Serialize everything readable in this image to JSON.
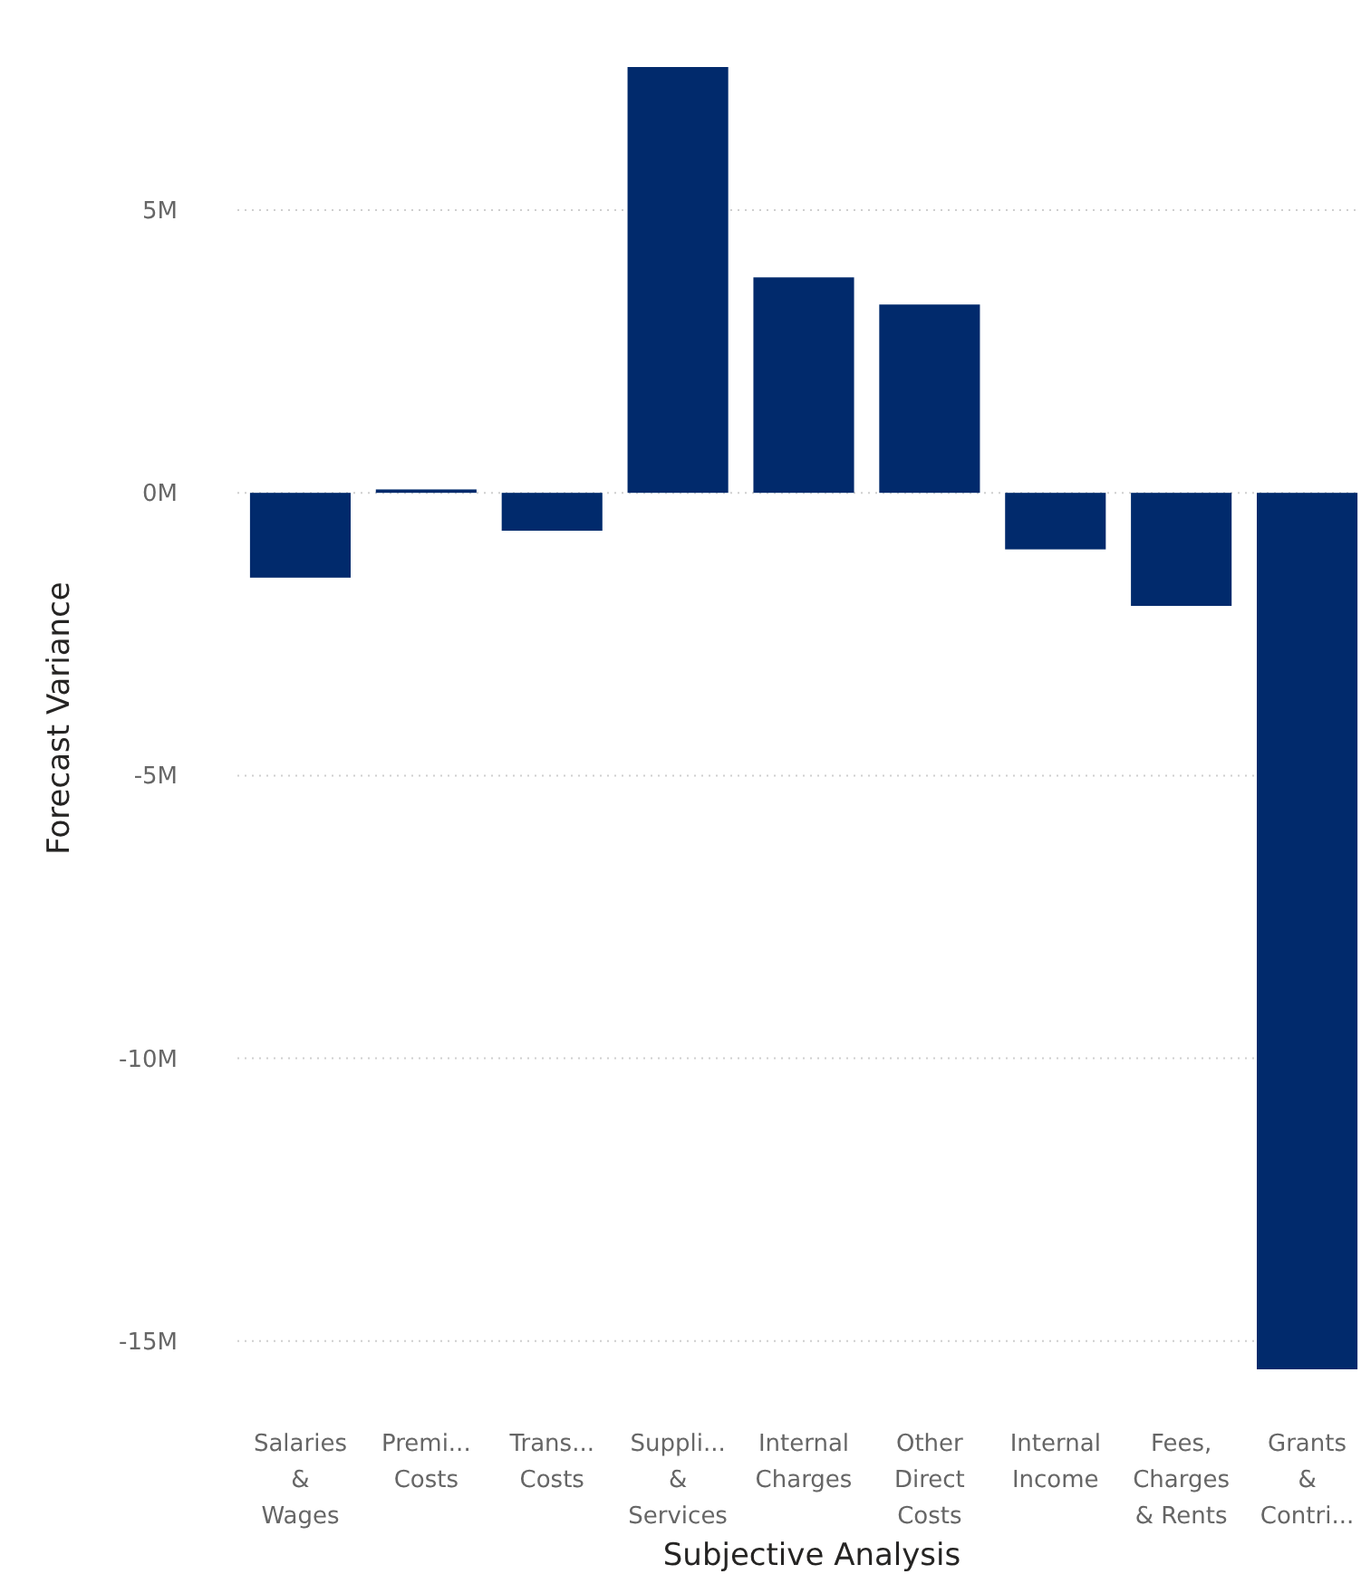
{
  "chart_data": {
    "type": "bar",
    "xlabel": "Subjective Analysis",
    "ylabel": "Forecast Variance",
    "categories": [
      "Salaries\n&\nWages",
      "Premi...\nCosts",
      "Trans...\nCosts",
      "Suppli...\n&\nServices",
      "Internal\nCharges",
      "Other\nDirect\nCosts",
      "Internal\nIncome",
      "Fees,\nCharges\n& Rents",
      "Grants\n&\nContri..."
    ],
    "values": [
      -1.5,
      0.06,
      -0.67,
      7.53,
      3.81,
      3.33,
      -1.0,
      -2.0,
      -15.5
    ],
    "color": "#012a6c",
    "ylim": [
      -15.5,
      7.53
    ],
    "yticks": [
      {
        "value": -15,
        "label": "-15M"
      },
      {
        "value": -10,
        "label": "-10M"
      },
      {
        "value": -5,
        "label": "-5M"
      },
      {
        "value": 0,
        "label": "0M"
      },
      {
        "value": 5,
        "label": "5M"
      }
    ],
    "grid": "y"
  }
}
